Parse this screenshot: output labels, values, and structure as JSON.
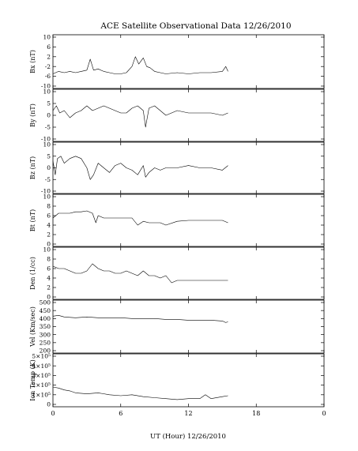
{
  "title": "ACE Satellite Observational Data   12/26/2010",
  "xlabel": "UT (Hour)   12/26/2010",
  "xticks": [
    "0",
    "6",
    "12",
    "18",
    "0"
  ],
  "panel_ylabels": [
    "Bx (nT)",
    "By (nT)",
    "Bz (nT)",
    "Bt (nT)",
    "Den (1/cc)",
    "Vel (Km/sec)",
    "Ion Temp (K)"
  ],
  "chart_data": [
    {
      "type": "line",
      "title": "ACE Satellite Observational Data   12/26/2010",
      "xlabel": "UT (Hour)   12/26/2010",
      "ylabel": "Bx (nT)",
      "xlim": [
        0,
        24
      ],
      "ylim": [
        -10,
        10
      ],
      "yticks": [
        -10,
        -6,
        -2,
        2,
        6,
        10
      ],
      "ytick_labels": [
        "-10",
        "-6",
        "-2",
        "2",
        "6",
        "10"
      ],
      "x": [
        0,
        0.5,
        1,
        1.5,
        2,
        2.5,
        3,
        3.3,
        3.6,
        4,
        4.5,
        5,
        5.5,
        6,
        6.5,
        7,
        7.3,
        7.6,
        8,
        8.3,
        8.6,
        9,
        9.5,
        10,
        11,
        12,
        13,
        14,
        15,
        15.3,
        15.5
      ],
      "values": [
        -5,
        -4,
        -4.5,
        -4,
        -4.5,
        -4,
        -3.5,
        1,
        -3.5,
        -3,
        -4,
        -4.5,
        -5,
        -5,
        -4.5,
        -2,
        2,
        -1,
        1.5,
        -2,
        -2.5,
        -4,
        -4.5,
        -5,
        -4.5,
        -5,
        -4.5,
        -4.5,
        -4,
        -2,
        -4
      ]
    },
    {
      "type": "line",
      "ylabel": "By (nT)",
      "xlim": [
        0,
        24
      ],
      "ylim": [
        -10,
        10
      ],
      "yticks": [
        -10,
        -5,
        0,
        5,
        10
      ],
      "ytick_labels": [
        "-10",
        "-5",
        "0",
        "5",
        "10"
      ],
      "x": [
        0,
        0.3,
        0.6,
        1,
        1.5,
        2,
        2.5,
        3,
        3.5,
        4,
        4.5,
        5,
        5.5,
        6,
        6.5,
        7,
        7.5,
        8,
        8.2,
        8.5,
        9,
        9.5,
        10,
        10.5,
        11,
        12,
        13,
        14,
        15,
        15.5
      ],
      "values": [
        2,
        4,
        1,
        2,
        -1,
        1,
        2,
        4,
        2,
        3,
        4,
        3,
        2,
        1,
        1,
        3,
        4,
        2,
        -5,
        3,
        4,
        2,
        0,
        1,
        2,
        1,
        1,
        1,
        0,
        1
      ]
    },
    {
      "type": "line",
      "ylabel": "Bz (nT)",
      "xlim": [
        0,
        24
      ],
      "ylim": [
        -10,
        10
      ],
      "yticks": [
        -10,
        -5,
        0,
        5,
        10
      ],
      "ytick_labels": [
        "-10",
        "-5",
        "0",
        "5",
        "10"
      ],
      "x": [
        0,
        0.2,
        0.4,
        0.7,
        1,
        1.5,
        2,
        2.5,
        3,
        3.3,
        3.6,
        4,
        4.5,
        5,
        5.5,
        6,
        6.5,
        7,
        7.5,
        8,
        8.2,
        8.5,
        9,
        9.5,
        10,
        11,
        12,
        13,
        14,
        15,
        15.5
      ],
      "values": [
        3,
        -3,
        4,
        5,
        2,
        4,
        5,
        4,
        0,
        -5,
        -3,
        2,
        0,
        -2,
        1,
        2,
        0,
        -1,
        -3,
        1,
        -4,
        -2,
        0,
        -1,
        0,
        0,
        1,
        0,
        0,
        -1,
        1
      ]
    },
    {
      "type": "line",
      "ylabel": "Bt (nT)",
      "xlim": [
        0,
        24
      ],
      "ylim": [
        0,
        10
      ],
      "yticks": [
        0,
        2,
        4,
        6,
        8,
        10
      ],
      "ytick_labels": [
        "0",
        "2",
        "4",
        "6",
        "8",
        "10"
      ],
      "x": [
        0,
        0.5,
        1,
        1.5,
        2,
        2.5,
        3,
        3.5,
        3.8,
        4,
        4.5,
        5,
        5.5,
        6,
        6.5,
        7,
        7.5,
        8,
        8.5,
        9,
        9.5,
        10,
        11,
        12,
        13,
        14,
        15,
        15.5
      ],
      "values": [
        5.5,
        6.5,
        6.5,
        6.5,
        6.8,
        6.8,
        7,
        6.5,
        4.5,
        6,
        5.5,
        5.5,
        5.5,
        5.5,
        5.5,
        5.5,
        4,
        4.8,
        4.5,
        4.5,
        4.5,
        4,
        4.8,
        5,
        5,
        5,
        5,
        4.5
      ]
    },
    {
      "type": "line",
      "ylabel": "Den (1/cc)",
      "xlim": [
        0,
        24
      ],
      "ylim": [
        0,
        10
      ],
      "yticks": [
        0,
        2,
        4,
        6,
        8,
        10
      ],
      "ytick_labels": [
        "0",
        "2",
        "4",
        "6",
        "8",
        "10"
      ],
      "x": [
        0,
        0.5,
        1,
        1.5,
        2,
        2.5,
        3,
        3.5,
        4,
        4.5,
        5,
        5.5,
        6,
        6.5,
        7,
        7.5,
        8,
        8.5,
        9,
        9.5,
        10,
        10.5,
        11,
        12,
        13,
        14,
        15,
        15.5
      ],
      "values": [
        6.5,
        6,
        6,
        5.5,
        5,
        5,
        5.5,
        7,
        6,
        5.5,
        5.5,
        5,
        5,
        5.5,
        5,
        4.5,
        5.5,
        4.5,
        4.5,
        4,
        4.5,
        3,
        3.5,
        3.5,
        3.5,
        3.5,
        3.5,
        3.5
      ]
    },
    {
      "type": "line",
      "ylabel": "Vel (Km/sec)",
      "xlim": [
        0,
        24
      ],
      "ylim": [
        200,
        500
      ],
      "yticks": [
        200,
        250,
        300,
        350,
        400,
        450,
        500
      ],
      "ytick_labels": [
        "200",
        "250",
        "300",
        "350",
        "400",
        "450",
        "500"
      ],
      "x": [
        0,
        0.5,
        1,
        2,
        3,
        4,
        5,
        6,
        7,
        8,
        9,
        10,
        11,
        12,
        13,
        14,
        15,
        15.3,
        15.5
      ],
      "values": [
        415,
        420,
        410,
        405,
        410,
        405,
        405,
        405,
        400,
        400,
        400,
        395,
        395,
        390,
        390,
        390,
        385,
        375,
        380
      ]
    },
    {
      "type": "line",
      "ylabel": "Ion Temp (K)",
      "xlim": [
        0,
        24
      ],
      "ylim": [
        0,
        500000
      ],
      "yticks": [
        0,
        100000,
        200000,
        300000,
        400000,
        500000
      ],
      "ytick_labels": [
        "0",
        "1×10⁵",
        "2×10⁵",
        "3×10⁵",
        "4×10⁵",
        "5×10⁵"
      ],
      "x": [
        0,
        0.5,
        1,
        1.5,
        2,
        3,
        4,
        5,
        6,
        7,
        8,
        9,
        10,
        11,
        12,
        13,
        13.5,
        14,
        15,
        15.5
      ],
      "values": [
        180000,
        170000,
        150000,
        140000,
        120000,
        110000,
        120000,
        100000,
        90000,
        100000,
        80000,
        70000,
        60000,
        50000,
        60000,
        60000,
        100000,
        60000,
        80000,
        90000
      ]
    }
  ]
}
